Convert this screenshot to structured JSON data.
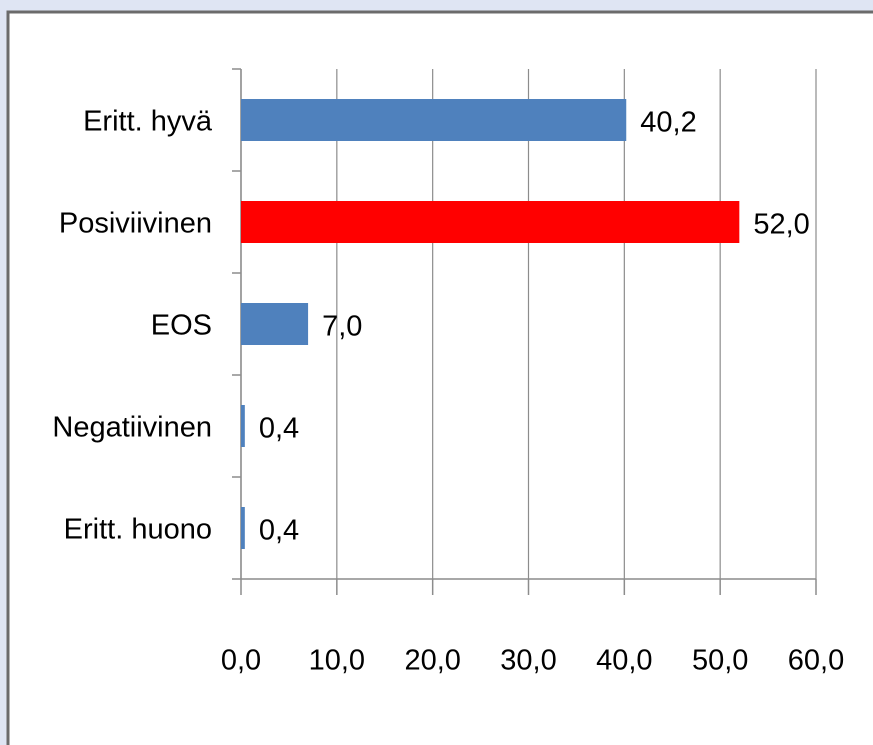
{
  "chart_data": {
    "type": "bar",
    "orientation": "horizontal",
    "categories": [
      "Eritt. hyvä",
      "Posiviivinen",
      "EOS",
      "Negatiivinen",
      "Eritt. huono"
    ],
    "values": [
      40.2,
      52.0,
      7.0,
      0.4,
      0.4
    ],
    "value_labels": [
      "40,2",
      "52,0",
      "7,0",
      "0,4",
      "0,4"
    ],
    "colors": [
      "#4f81bd",
      "#ff0000",
      "#4f81bd",
      "#4f81bd",
      "#4f81bd"
    ],
    "xlim": [
      0,
      60
    ],
    "xticks": [
      {
        "value": 0,
        "label": "0,0"
      },
      {
        "value": 10,
        "label": "10,0"
      },
      {
        "value": 20,
        "label": "20,0"
      },
      {
        "value": 30,
        "label": "30,0"
      },
      {
        "value": 40,
        "label": "40,0"
      },
      {
        "value": 50,
        "label": "50,0"
      },
      {
        "value": 60,
        "label": "60,0"
      }
    ],
    "grid": true
  }
}
